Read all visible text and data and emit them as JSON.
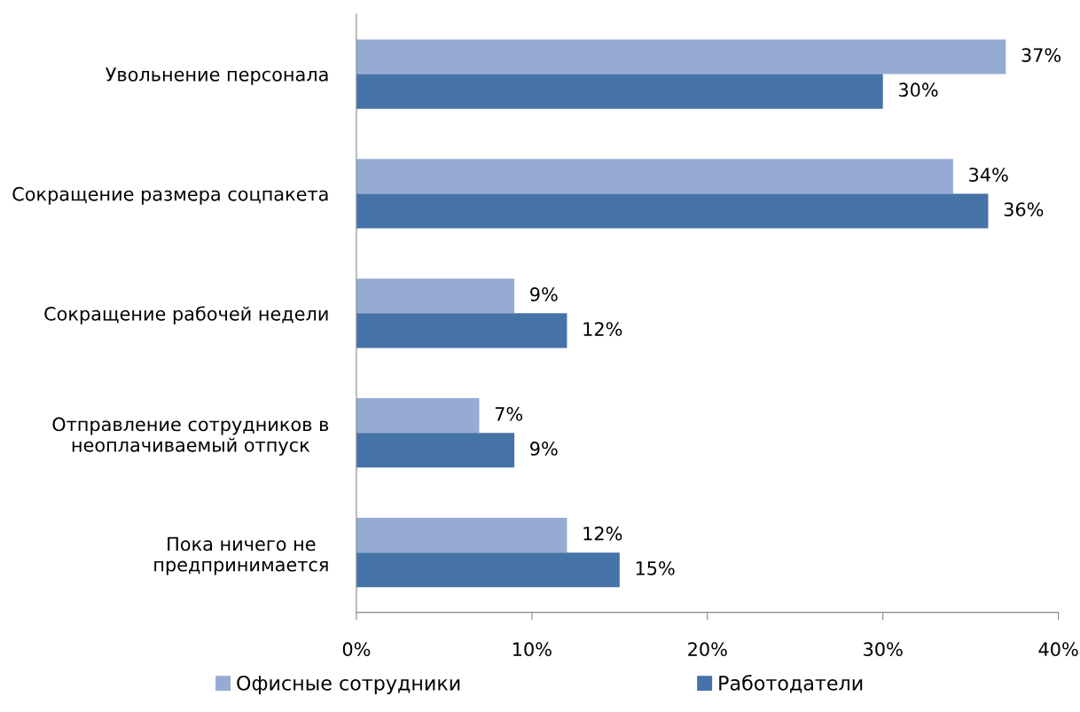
{
  "chart_data": {
    "type": "bar",
    "orientation": "horizontal",
    "categories": [
      "Увольнение персонала",
      "Сокращение размера соцпакета",
      "Сокращение рабочей недели",
      "Отправление сотрудников в\nнеоплачиваемый отпуск",
      "Пока ничего не\nпредпринимается"
    ],
    "series": [
      {
        "name": "Офисные сотрудники",
        "color": "#95abd4",
        "values": [
          37,
          34,
          9,
          7,
          12
        ],
        "value_labels": [
          "37%",
          "34%",
          "9%",
          "7%",
          "12%"
        ]
      },
      {
        "name": "Работодатели",
        "color": "#4573a7",
        "values": [
          30,
          36,
          12,
          9,
          15
        ],
        "value_labels": [
          "30%",
          "36%",
          "12%",
          "9%",
          "15%"
        ]
      }
    ],
    "xlim": [
      0,
      40
    ],
    "xticks": [
      {
        "value": 0,
        "label": "0%"
      },
      {
        "value": 10,
        "label": "10%"
      },
      {
        "value": 20,
        "label": "20%"
      },
      {
        "value": 30,
        "label": "30%"
      },
      {
        "value": 40,
        "label": "40%"
      }
    ],
    "grid": false,
    "legend": "bottom"
  }
}
